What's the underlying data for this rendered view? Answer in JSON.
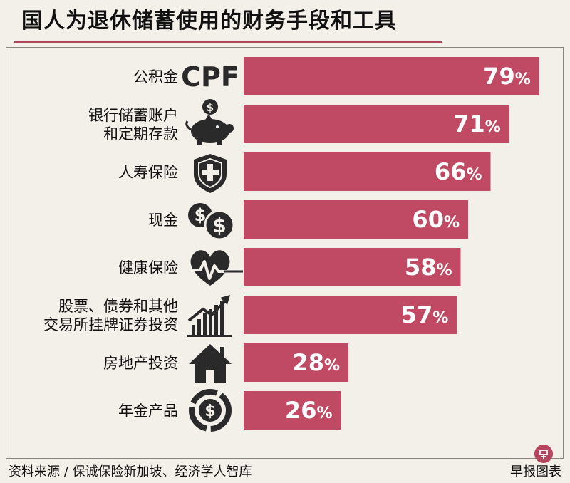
{
  "chart_data": {
    "type": "bar",
    "orientation": "horizontal",
    "title": "国人为退休储蓄使用的财务手段和工具",
    "value_suffix": "%",
    "xlim": [
      0,
      100
    ],
    "bar_color": "#c04a63",
    "icon_color": "#2a2a2a",
    "categories": [
      {
        "lines": [
          "公积金"
        ],
        "value": 79,
        "icon": "cpf-text",
        "icon_text": "CPF"
      },
      {
        "lines": [
          "银行储蓄账户",
          "和定期存款"
        ],
        "value": 71,
        "icon": "piggy-bank-icon"
      },
      {
        "lines": [
          "人寿保险"
        ],
        "value": 66,
        "icon": "shield-cross-icon"
      },
      {
        "lines": [
          "现金"
        ],
        "value": 60,
        "icon": "coins-dollar-icon"
      },
      {
        "lines": [
          "健康保险"
        ],
        "value": 58,
        "icon": "heart-pulse-icon"
      },
      {
        "lines": [
          "股票、债券和其他",
          "交易所挂牌证券投资"
        ],
        "value": 57,
        "icon": "growth-chart-icon"
      },
      {
        "lines": [
          "房地产投资"
        ],
        "value": 28,
        "icon": "house-icon"
      },
      {
        "lines": [
          "年金产品"
        ],
        "value": 26,
        "icon": "annuity-dollar-icon"
      }
    ]
  },
  "footer": {
    "source": "资料来源 / 保诚保险新加坡、经济学人智库",
    "credit": "早报图表"
  }
}
